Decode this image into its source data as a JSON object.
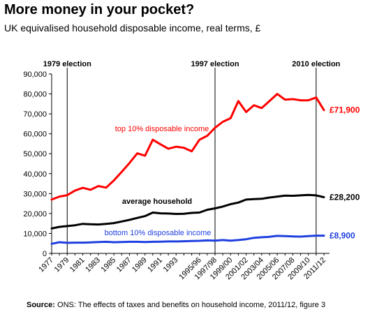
{
  "title": "More money in your pocket?",
  "subtitle": "UK equivalised household disposable income, real terms, £",
  "source_label": "Source:",
  "source_text": "ONS: The effects of taxes and benefits on household income, 2011/12, figure 3",
  "chart_data": {
    "type": "line",
    "ylim": [
      0,
      90000
    ],
    "yticks": [
      0,
      10000,
      20000,
      30000,
      40000,
      50000,
      60000,
      70000,
      80000,
      90000
    ],
    "ytick_labels": [
      "0",
      "10,000",
      "20,000",
      "30,000",
      "40,000",
      "50,000",
      "60,000",
      "70,000",
      "80,000",
      "90,000"
    ],
    "x": [
      "1977",
      "1978",
      "1979",
      "1980",
      "1981",
      "1982",
      "1983",
      "1984",
      "1985",
      "1986",
      "1987",
      "1988",
      "1989",
      "1990",
      "1991",
      "1992",
      "1993",
      "1994",
      "1994/95",
      "1995/96",
      "1996/97",
      "1997/98",
      "1998/99",
      "1999/00",
      "2000/01",
      "2001/02",
      "2002/03",
      "2003/04",
      "2004/05",
      "2005/06",
      "2006/07",
      "2007/08",
      "2008/09",
      "2009/10",
      "2010/11",
      "2011/12"
    ],
    "xtick_labels": [
      "1977",
      "1979",
      "1981",
      "1983",
      "1985",
      "1987",
      "1989",
      "1991",
      "1993",
      "1995/96",
      "1997/98",
      "1999/00",
      "2001/02",
      "2003/04",
      "2005/06",
      "2007/08",
      "2009/10",
      "2011/12"
    ],
    "events": [
      {
        "label": "1979 election",
        "x": "1979"
      },
      {
        "label": "1997 election",
        "x": "1997/98"
      },
      {
        "label": "2010 election",
        "x": "2010/11"
      }
    ],
    "series": [
      {
        "name": "top 10% disposable income",
        "color": "#ff0000",
        "end_label": "£71,900",
        "values": [
          27000,
          28500,
          29200,
          31500,
          32900,
          31900,
          33800,
          33000,
          36600,
          40900,
          45300,
          50200,
          49000,
          57000,
          54700,
          52500,
          53500,
          53000,
          51200,
          57000,
          59000,
          63000,
          66000,
          67800,
          76400,
          70900,
          74300,
          72900,
          76400,
          80000,
          77100,
          77400,
          76800,
          76800,
          78200,
          71900
        ]
      },
      {
        "name": "average household",
        "color": "#000000",
        "end_label": "£28,200",
        "values": [
          12500,
          13300,
          13700,
          14100,
          14800,
          14600,
          14500,
          14800,
          15200,
          16000,
          16800,
          17800,
          18700,
          20500,
          20100,
          20000,
          19800,
          19900,
          20300,
          20500,
          21900,
          22600,
          23500,
          24700,
          25500,
          27000,
          27200,
          27400,
          28000,
          28500,
          29000,
          28900,
          29100,
          29300,
          29100,
          28200
        ]
      },
      {
        "name": "bottom 10% disposable income",
        "color": "#1f3fdf",
        "end_label": "£8,900",
        "values": [
          4800,
          5600,
          5300,
          5400,
          5400,
          5500,
          5700,
          5800,
          5600,
          5700,
          5800,
          5800,
          5700,
          5800,
          5900,
          6000,
          6000,
          6100,
          6200,
          6300,
          6500,
          6400,
          6700,
          6400,
          6700,
          7100,
          7800,
          8100,
          8300,
          8800,
          8700,
          8500,
          8400,
          8700,
          8900,
          8900
        ]
      }
    ]
  }
}
